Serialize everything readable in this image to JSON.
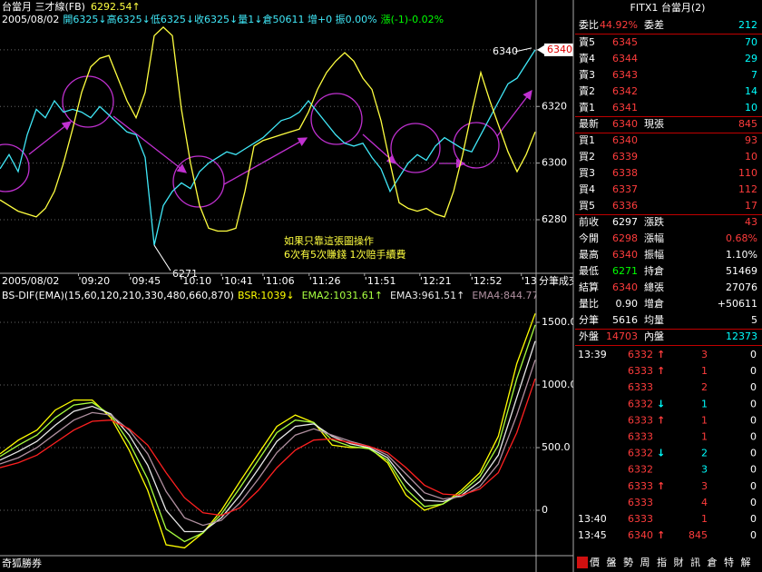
{
  "chart_data": [
    {
      "type": "line",
      "title": "台當月 三才線(FB)",
      "indicator_value": "6292.54↑",
      "date": "2005/08/02",
      "ohlc": "開6325↓高6325↓低6325↓收6325↓量1↓倉50611 增+0 振0.00%",
      "change": "漲(-1)-0.02%",
      "annotations": [
        "如果只靠這張圖操作",
        "6次有5次賺錢 1次賠手續費"
      ],
      "low_label": 6271,
      "high_label": 6340,
      "last_price": 6340,
      "xlim": [
        0,
        59
      ],
      "ylim": [
        6261.4,
        6357.6
      ],
      "yticks": [
        6340,
        6320,
        6300,
        6280
      ],
      "grid": true,
      "series": [
        {
          "color": "#40e8f8",
          "values": [
            6298,
            6303,
            6297,
            6310,
            6319,
            6316,
            6322,
            6318,
            6319,
            6318,
            6316,
            6320,
            6317,
            6314,
            6311,
            6310,
            6302,
            6271,
            6285,
            6290,
            6293,
            6291,
            6297,
            6300,
            6302,
            6304,
            6303,
            6305,
            6307,
            6309,
            6312,
            6315,
            6316,
            6318,
            6322,
            6318,
            6314,
            6310,
            6307,
            6306,
            6307,
            6302,
            6298,
            6290,
            6295,
            6300,
            6303,
            6301,
            6306,
            6309,
            6307,
            6305,
            6304,
            6310,
            6316,
            6322,
            6328,
            6330,
            6335,
            6340
          ]
        },
        {
          "color": "#ffff40",
          "values": [
            6287,
            6285,
            6283,
            6282,
            6281,
            6284,
            6290,
            6300,
            6312,
            6325,
            6334,
            6337,
            6338,
            6330,
            6322,
            6316,
            6325,
            6345,
            6348,
            6345,
            6319,
            6300,
            6285,
            6277,
            6276,
            6276,
            6277,
            6290,
            6306,
            6308,
            6309,
            6310,
            6311,
            6312,
            6318,
            6326,
            6332,
            6336,
            6339,
            6336,
            6330,
            6326,
            6315,
            6300,
            6286,
            6284,
            6283,
            6284,
            6282,
            6281,
            6290,
            6303,
            6318,
            6332,
            6322,
            6313,
            6304,
            6297,
            6303,
            6311
          ]
        }
      ]
    },
    {
      "type": "line",
      "date": "2005/08/02",
      "title": "BS-DIF(EMA)(15,60,120,210,330,480,660,870)",
      "corner_label": "分筆成交",
      "xlim": [
        0,
        29
      ],
      "ylim": [
        -362,
        1884
      ],
      "xticks": [
        {
          "value": 4.25,
          "label": "'09:20"
        },
        {
          "value": 7,
          "label": "'09:45"
        },
        {
          "value": 9.75,
          "label": "'10:10"
        },
        {
          "value": 12,
          "label": "'10:41"
        },
        {
          "value": 14.25,
          "label": "'11:06"
        },
        {
          "value": 16.75,
          "label": "'11:26"
        },
        {
          "value": 19.75,
          "label": "'11:51"
        },
        {
          "value": 22.75,
          "label": "'12:21"
        },
        {
          "value": 25.5,
          "label": "'12:52"
        },
        {
          "value": 28.25,
          "label": "'13:22"
        }
      ],
      "yticks": [
        {
          "value": 1500,
          "label": "1500.0"
        },
        {
          "value": 1000,
          "label": "1000.0"
        },
        {
          "value": 500,
          "label": "500.0"
        },
        0
      ],
      "grid": true,
      "series": [
        {
          "legend": "BSR:1039↓",
          "color": "#ffff00",
          "values": [
            450,
            560,
            640,
            800,
            880,
            880,
            740,
            480,
            160,
            -275,
            -300,
            -180,
            0,
            230,
            450,
            670,
            760,
            700,
            520,
            500,
            500,
            380,
            120,
            0,
            50,
            160,
            300,
            590,
            1170,
            1570
          ]
        },
        {
          "legend": "EMA2:1031.61↑",
          "color": "#a8ff40",
          "values": [
            430,
            520,
            600,
            740,
            840,
            860,
            760,
            540,
            250,
            -150,
            -250,
            -180,
            -30,
            180,
            400,
            620,
            720,
            700,
            560,
            510,
            490,
            400,
            170,
            30,
            50,
            140,
            270,
            520,
            1050,
            1480
          ]
        },
        {
          "legend": "EMA3:961.51↑",
          "color": "#e8e8e8",
          "values": [
            400,
            470,
            550,
            680,
            790,
            830,
            770,
            600,
            360,
            0,
            -170,
            -170,
            -60,
            120,
            330,
            550,
            670,
            690,
            590,
            530,
            500,
            420,
            230,
            80,
            70,
            120,
            230,
            440,
            900,
            1350
          ]
        },
        {
          "legend": "EMA4:844.77↑",
          "color": "#b090a0",
          "values": [
            370,
            420,
            500,
            610,
            720,
            780,
            760,
            640,
            450,
            150,
            -60,
            -120,
            -80,
            60,
            250,
            460,
            600,
            650,
            600,
            550,
            510,
            440,
            290,
            140,
            90,
            110,
            190,
            370,
            760,
            1200
          ]
        },
        {
          "legend": "EMA5:",
          "color": "#ff2020",
          "values": [
            340,
            380,
            440,
            540,
            640,
            710,
            720,
            650,
            520,
            300,
            100,
            -20,
            -40,
            20,
            160,
            340,
            480,
            560,
            570,
            540,
            510,
            460,
            340,
            200,
            130,
            120,
            170,
            300,
            620,
            1050
          ]
        }
      ]
    }
  ],
  "quote": {
    "title": "FITX1 台當月(2)",
    "rows": [
      {
        "l1": "委比",
        "v1": "44.92%",
        "c1": "#ff3c3c",
        "l2": "委差",
        "v2": "212",
        "c2": "#00ffff"
      },
      {
        "l1": "賣5",
        "v1": "6345",
        "c1": "#ff3c3c",
        "v2": "70",
        "c2": "#00ffff"
      },
      {
        "l1": "賣4",
        "v1": "6344",
        "c1": "#ff3c3c",
        "v2": "29",
        "c2": "#00ffff"
      },
      {
        "l1": "賣3",
        "v1": "6343",
        "c1": "#ff3c3c",
        "v2": "7",
        "c2": "#00ffff"
      },
      {
        "l1": "賣2",
        "v1": "6342",
        "c1": "#ff3c3c",
        "v2": "14",
        "c2": "#00ffff"
      },
      {
        "l1": "賣1",
        "v1": "6341",
        "c1": "#ff3c3c",
        "v2": "10",
        "c2": "#00ffff"
      },
      {
        "l1": "最新",
        "v1": "6340",
        "c1": "#ff3c3c",
        "l2": "現張",
        "v2": "845",
        "c2": "#ff3c3c"
      },
      {
        "l1": "買1",
        "v1": "6340",
        "c1": "#ff3c3c",
        "v2": "93",
        "c2": "#ff3c3c"
      },
      {
        "l1": "買2",
        "v1": "6339",
        "c1": "#ff3c3c",
        "v2": "10",
        "c2": "#ff3c3c"
      },
      {
        "l1": "買3",
        "v1": "6338",
        "c1": "#ff3c3c",
        "v2": "110",
        "c2": "#ff3c3c"
      },
      {
        "l1": "買4",
        "v1": "6337",
        "c1": "#ff3c3c",
        "v2": "112",
        "c2": "#ff3c3c"
      },
      {
        "l1": "買5",
        "v1": "6336",
        "c1": "#ff3c3c",
        "v2": "17",
        "c2": "#ff3c3c"
      },
      {
        "l1": "前收",
        "v1": "6297",
        "c1": "#ffffff",
        "l2": "漲跌",
        "v2": "43",
        "c2": "#ff3c3c"
      },
      {
        "l1": "今開",
        "v1": "6298",
        "c1": "#ff3c3c",
        "l2": "漲幅",
        "v2": "0.68%",
        "c2": "#ff3c3c"
      },
      {
        "l1": "最高",
        "v1": "6340",
        "c1": "#ff3c3c",
        "l2": "振幅",
        "v2": "1.10%",
        "c2": "#ffffff"
      },
      {
        "l1": "最低",
        "v1": "6271",
        "c1": "#00ff00",
        "l2": "持倉",
        "v2": "51469",
        "c2": "#ffffff"
      },
      {
        "l1": "結算",
        "v1": "6340",
        "c1": "#ff3c3c",
        "l2": "總張",
        "v2": "27076",
        "c2": "#ffffff"
      },
      {
        "l1": "量比",
        "v1": "0.90",
        "c1": "#ffffff",
        "l2": "增倉",
        "v2": "+50611",
        "c2": "#ffffff"
      },
      {
        "l1": "分筆",
        "v1": "5616",
        "c1": "#ffffff",
        "l2": "均量",
        "v2": "5",
        "c2": "#ffffff"
      },
      {
        "l1": "外盤",
        "v1": "14703",
        "c1": "#ff3c3c",
        "l2": "內盤",
        "v2": "12373",
        "c2": "#00ffff"
      }
    ]
  },
  "ticks": [
    {
      "time": "13:39",
      "price": "6332",
      "dir": "↑",
      "vol": "3",
      "vol_color": "#ff3c3c",
      "chg": "0"
    },
    {
      "price": "6333",
      "dir": "↑",
      "vol": "1",
      "vol_color": "#ff3c3c",
      "chg": "0"
    },
    {
      "price": "6333",
      "vol": "2",
      "vol_color": "#ff3c3c",
      "chg": "0"
    },
    {
      "price": "6332",
      "dir": "↓",
      "vol": "1",
      "vol_color": "#00ffff",
      "chg": "0"
    },
    {
      "price": "6333",
      "dir": "↑",
      "vol": "1",
      "vol_color": "#ff3c3c",
      "chg": "0"
    },
    {
      "price": "6333",
      "vol": "1",
      "vol_color": "#ff3c3c",
      "chg": "0"
    },
    {
      "price": "6332",
      "dir": "↓",
      "vol": "2",
      "vol_color": "#00ffff",
      "chg": "0"
    },
    {
      "price": "6332",
      "vol": "3",
      "vol_color": "#00ffff",
      "chg": "0"
    },
    {
      "price": "6333",
      "dir": "↑",
      "vol": "3",
      "vol_color": "#ff3c3c",
      "chg": "0"
    },
    {
      "price": "6333",
      "vol": "4",
      "vol_color": "#ff3c3c",
      "chg": "0"
    },
    {
      "time": "13:40",
      "price": "6333",
      "vol": "1",
      "vol_color": "#ff3c3c",
      "chg": "0"
    },
    {
      "time": "13:45",
      "price": "6340",
      "dir": "↑",
      "vol": "845",
      "vol_color": "#ff3c3c",
      "chg": "0"
    }
  ],
  "footer": {
    "brand": "奇狐勝券",
    "tabs": [
      "價",
      "盤",
      "勢",
      "周",
      "指",
      "財",
      "訊",
      "倉",
      "特",
      "解"
    ]
  }
}
